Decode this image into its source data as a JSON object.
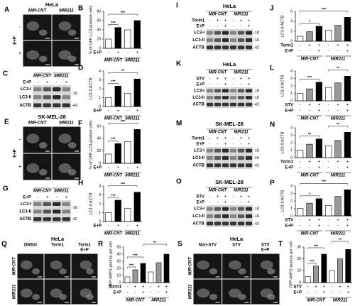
{
  "chart_data": [
    {
      "type": "bar",
      "panel": "B",
      "ylabel": "% of GFP-LC3-positive cells",
      "ylim": [
        0,
        80
      ],
      "yticks": [
        0,
        20,
        40,
        60,
        80
      ],
      "values": [
        20,
        45,
        40,
        60
      ],
      "colors": [
        "#ffffff",
        "#000000",
        "#ffffff",
        "#000000"
      ],
      "treatments": [
        {
          "label": "E+P",
          "signs": [
            "-",
            "+",
            "-",
            "+"
          ]
        }
      ],
      "groups": [
        "MIR-CNT",
        "MIR211"
      ],
      "sig": [
        {
          "bars": [
            0,
            1
          ],
          "label": "***"
        },
        {
          "bars": [
            0,
            3
          ],
          "label": "***"
        }
      ]
    },
    {
      "type": "bar",
      "panel": "D",
      "ylabel": "LC3-II:ACTB",
      "ylim": [
        0,
        4
      ],
      "yticks": [
        0,
        1,
        2,
        3,
        4
      ],
      "values": [
        1,
        2.3,
        1.5,
        3.1
      ],
      "colors": [
        "#ffffff",
        "#000000",
        "#ffffff",
        "#000000"
      ],
      "treatments": [
        {
          "label": "E+P",
          "signs": [
            "-",
            "+",
            "-",
            "+"
          ]
        }
      ],
      "groups": [
        "MIR-CNT",
        "MIR211"
      ],
      "sig": [
        {
          "bars": [
            0,
            1
          ],
          "label": "***"
        },
        {
          "bars": [
            0,
            3
          ],
          "label": "**"
        }
      ]
    },
    {
      "type": "bar",
      "panel": "F",
      "ylabel": "% of GFP-LC3-positive cells",
      "ylim": [
        0,
        60
      ],
      "yticks": [
        0,
        20,
        40,
        60
      ],
      "values": [
        15,
        32,
        35,
        55
      ],
      "colors": [
        "#ffffff",
        "#000000",
        "#ffffff",
        "#000000"
      ],
      "treatments": [
        {
          "label": "E+P",
          "signs": [
            "-",
            "+",
            "-",
            "+"
          ]
        }
      ],
      "groups": [
        "MIR-CNT",
        "MIR211"
      ],
      "sig": [
        {
          "bars": [
            0,
            1
          ],
          "label": "***"
        },
        {
          "bars": [
            0,
            3
          ],
          "label": "***"
        }
      ]
    },
    {
      "type": "bar",
      "panel": "H",
      "ylabel": "LC3-II:ACTB",
      "ylim": [
        0,
        4
      ],
      "yticks": [
        0,
        1,
        2,
        3,
        4
      ],
      "values": [
        1,
        2.4,
        1.5,
        3.3
      ],
      "colors": [
        "#ffffff",
        "#000000",
        "#ffffff",
        "#000000"
      ],
      "treatments": [
        {
          "label": "E+P",
          "signs": [
            "-",
            "+",
            "-",
            "+"
          ]
        }
      ],
      "groups": [
        "MIR-CNT",
        "MIR211"
      ],
      "sig": [
        {
          "bars": [
            0,
            1
          ],
          "label": "***"
        },
        {
          "bars": [
            0,
            3
          ],
          "label": "***"
        }
      ]
    },
    {
      "type": "bar",
      "panel": "J",
      "ylabel": "LC3-II:ACTB",
      "ylim": [
        0,
        6
      ],
      "yticks": [
        0,
        2,
        4,
        6
      ],
      "values": [
        1,
        1.9,
        3.0,
        2.2,
        3.2,
        4.8
      ],
      "colors": [
        "#ffffff",
        "#999999",
        "#000000",
        "#ffffff",
        "#999999",
        "#000000"
      ],
      "treatments": [
        {
          "label": "Torin1",
          "signs": [
            "-",
            "+",
            "+",
            "-",
            "+",
            "+"
          ]
        },
        {
          "label": "E+P",
          "signs": [
            "-",
            "-",
            "+",
            "-",
            "-",
            "+"
          ]
        }
      ],
      "groups": [
        "MIR-CNT",
        "MIR211"
      ],
      "sig": [
        {
          "bars": [
            0,
            2
          ],
          "label": "*"
        },
        {
          "bars": [
            0,
            5
          ],
          "label": "***"
        }
      ]
    },
    {
      "type": "bar",
      "panel": "L",
      "ylabel": "LC3-II:ACTB",
      "ylim": [
        0,
        4
      ],
      "yticks": [
        0,
        1,
        2,
        3,
        4
      ],
      "values": [
        1,
        1.6,
        2.5,
        1.8,
        2.4,
        3.3
      ],
      "colors": [
        "#ffffff",
        "#999999",
        "#000000",
        "#ffffff",
        "#999999",
        "#000000"
      ],
      "treatments": [
        {
          "label": "STV",
          "signs": [
            "-",
            "+",
            "+",
            "-",
            "+",
            "+"
          ]
        },
        {
          "label": "E+P",
          "signs": [
            "-",
            "-",
            "+",
            "-",
            "-",
            "+"
          ]
        }
      ],
      "groups": [
        "MIR-CNT",
        "MIR211"
      ],
      "sig": [
        {
          "bars": [
            0,
            2
          ],
          "label": "***"
        },
        {
          "bars": [
            3,
            5
          ],
          "label": "**"
        }
      ]
    },
    {
      "type": "bar",
      "panel": "N",
      "ylabel": "LC3-II:ACTB",
      "ylim": [
        0,
        4
      ],
      "yticks": [
        0,
        1,
        2,
        3,
        4
      ],
      "values": [
        1,
        1.8,
        2.5,
        1.6,
        2.3,
        3.4
      ],
      "colors": [
        "#ffffff",
        "#999999",
        "#000000",
        "#ffffff",
        "#999999",
        "#000000"
      ],
      "treatments": [
        {
          "label": "Torin1",
          "signs": [
            "-",
            "+",
            "+",
            "-",
            "+",
            "+"
          ]
        },
        {
          "label": "E+P",
          "signs": [
            "-",
            "-",
            "+",
            "-",
            "-",
            "+"
          ]
        }
      ],
      "groups": [
        "MIR-CNT",
        "MIR211"
      ],
      "sig": [
        {
          "bars": [
            0,
            2
          ],
          "label": "**"
        },
        {
          "bars": [
            3,
            5
          ],
          "label": "**"
        }
      ]
    },
    {
      "type": "bar",
      "panel": "P",
      "ylabel": "LC3-II:ACTB",
      "ylim": [
        0,
        4
      ],
      "yticks": [
        0,
        1,
        2,
        3,
        4
      ],
      "values": [
        1,
        1.7,
        2.3,
        1.4,
        2.6,
        3.5
      ],
      "colors": [
        "#ffffff",
        "#999999",
        "#000000",
        "#ffffff",
        "#999999",
        "#000000"
      ],
      "treatments": [
        {
          "label": "STV",
          "signs": [
            "-",
            "+",
            "+",
            "-",
            "+",
            "+"
          ]
        },
        {
          "label": "E+P",
          "signs": [
            "-",
            "-",
            "+",
            "-",
            "-",
            "+"
          ]
        }
      ],
      "groups": [
        "MIR-CNT",
        "MIR211"
      ],
      "sig": [
        {
          "bars": [
            0,
            2
          ],
          "label": "*"
        },
        {
          "bars": [
            0,
            5
          ],
          "label": "***"
        }
      ]
    },
    {
      "type": "bar",
      "panel": "R",
      "ylabel": "GFP-WIPI1 puncta per cell",
      "ylim": [
        0,
        50
      ],
      "yticks": [
        0,
        10,
        20,
        30,
        40,
        50
      ],
      "values": [
        8,
        18,
        27,
        15,
        28,
        40
      ],
      "colors": [
        "#ffffff",
        "#999999",
        "#000000",
        "#ffffff",
        "#999999",
        "#000000"
      ],
      "treatments": [
        {
          "label": "Torin1",
          "signs": [
            "-",
            "+",
            "+",
            "-",
            "+",
            "+"
          ]
        },
        {
          "label": "E+P",
          "signs": [
            "-",
            "-",
            "+",
            "-",
            "-",
            "+"
          ]
        }
      ],
      "groups": [
        "MIR-CNT",
        "MIR211"
      ],
      "sig": [
        {
          "bars": [
            0,
            1
          ],
          "label": "***"
        },
        {
          "bars": [
            0,
            2
          ],
          "label": "***"
        },
        {
          "bars": [
            2,
            5
          ],
          "label": "**"
        }
      ]
    },
    {
      "type": "bar",
      "panel": "T",
      "ylabel": "GFP-WIPI1 puncta per cell",
      "ylim": [
        0,
        30
      ],
      "yticks": [
        0,
        10,
        20,
        30
      ],
      "values": [
        5,
        14,
        24,
        10,
        20,
        28
      ],
      "colors": [
        "#ffffff",
        "#999999",
        "#000000",
        "#ffffff",
        "#999999",
        "#000000"
      ],
      "treatments": [
        {
          "label": "STV",
          "signs": [
            "-",
            "+",
            "+",
            "-",
            "+",
            "+"
          ]
        },
        {
          "label": "E+P",
          "signs": [
            "-",
            "-",
            "+",
            "-",
            "-",
            "+"
          ]
        }
      ],
      "groups": [
        "MIR-CNT",
        "MIR211"
      ],
      "sig": [
        {
          "bars": [
            0,
            1
          ],
          "label": "***"
        },
        {
          "bars": [
            0,
            2
          ],
          "label": "***"
        },
        {
          "bars": [
            3,
            5
          ],
          "label": "**"
        }
      ]
    }
  ],
  "blots": [
    {
      "panel": "C",
      "groups": [
        "MIR-CNT",
        "MIR211"
      ],
      "rows": [
        {
          "label": "E+P",
          "signs": [
            "-",
            "+",
            "-",
            "+"
          ]
        }
      ],
      "bands": [
        "LC3-I",
        "LC3-II",
        "ACTB"
      ],
      "markers": [
        "-16",
        "-42"
      ]
    },
    {
      "panel": "G",
      "groups": [
        "MIR-CNT",
        "MIR211"
      ],
      "rows": [
        {
          "label": "E+P",
          "signs": [
            "-",
            "+",
            "-",
            "+"
          ]
        }
      ],
      "bands": [
        "LC3-I",
        "LC3-II",
        "ACTB"
      ],
      "markers": [
        "-16",
        "-42"
      ]
    },
    {
      "panel": "I",
      "title": "HeLa",
      "groups": [
        "MIR-CNT",
        "MIR211"
      ],
      "rows": [
        {
          "label": "Torin1",
          "signs": [
            "-",
            "+",
            "+",
            "-",
            "+",
            "+"
          ]
        },
        {
          "label": "E+P",
          "signs": [
            "-",
            "-",
            "+",
            "-",
            "-",
            "+"
          ]
        }
      ],
      "bands": [
        "LC3-I",
        "LC3-II",
        "ACTB"
      ],
      "markers": [
        "-18",
        "-16",
        "-42"
      ]
    },
    {
      "panel": "K",
      "title": "HeLa",
      "groups": [
        "MIR-CNT",
        "MIR211"
      ],
      "rows": [
        {
          "label": "STV",
          "signs": [
            "-",
            "+",
            "+",
            "-",
            "+",
            "+"
          ]
        },
        {
          "label": "E+P",
          "signs": [
            "-",
            "-",
            "+",
            "-",
            "-",
            "+"
          ]
        }
      ],
      "bands": [
        "LC3-I",
        "LC3-II",
        "ACTB"
      ],
      "markers": [
        "-18",
        "-16",
        "-42"
      ]
    },
    {
      "panel": "M",
      "title": "SK-MEL-28",
      "groups": [
        "MIR-CNT",
        "MIR211"
      ],
      "rows": [
        {
          "label": "Torin1",
          "signs": [
            "-",
            "+",
            "+",
            "-",
            "+",
            "+"
          ]
        },
        {
          "label": "E+P",
          "signs": [
            "-",
            "-",
            "+",
            "-",
            "-",
            "+"
          ]
        }
      ],
      "bands": [
        "LC3-I",
        "LC3-II",
        "ACTB"
      ],
      "markers": [
        "-18",
        "-16",
        "-42"
      ]
    },
    {
      "panel": "O",
      "title": "SK-MEL-28",
      "groups": [
        "MIR-CNT",
        "MIR211"
      ],
      "rows": [
        {
          "label": "STV",
          "signs": [
            "-",
            "+",
            "+",
            "-",
            "+",
            "+"
          ]
        },
        {
          "label": "E+P",
          "signs": [
            "-",
            "-",
            "+",
            "-",
            "-",
            "+"
          ]
        }
      ],
      "bands": [
        "LC3-I",
        "LC3-II",
        "ACTB"
      ],
      "markers": [
        "-18",
        "-16",
        "-42"
      ]
    }
  ],
  "images": [
    {
      "panel": "A",
      "title": "HeLa",
      "columns": [
        [
          "MIR-CNT"
        ],
        [
          "MIR211"
        ]
      ],
      "rows": [
        "-",
        "+"
      ],
      "side": "E+P"
    },
    {
      "panel": "E",
      "title": "SK-MEL-28",
      "columns": [
        [
          "MIR-CNT"
        ],
        [
          "MIR211"
        ]
      ],
      "rows": [
        "-",
        "+"
      ],
      "side": "E+P"
    },
    {
      "panel": "Q",
      "title": "HeLa",
      "columns": [
        [
          "DMSO"
        ],
        [
          "Torin1"
        ],
        [
          "Torin1",
          "E+P"
        ]
      ],
      "rows": [
        "MIR-CNT",
        "MIR211"
      ]
    },
    {
      "panel": "S",
      "title": "HeLa",
      "columns": [
        [
          "Non-STV"
        ],
        [
          "STV"
        ],
        [
          "STV",
          "E+P"
        ]
      ],
      "rows": [
        "MIR-CNT",
        "MIR211"
      ]
    }
  ]
}
